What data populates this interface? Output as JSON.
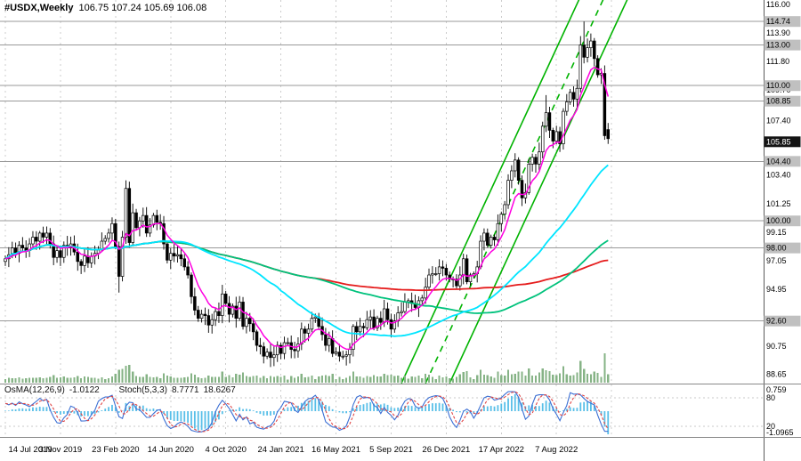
{
  "header": {
    "symbol": "#USDX,Weekly",
    "ohlc": "106.75 107.24 105.69 106.08"
  },
  "indicators": {
    "osma_label": "OsMA(12,26,9)",
    "osma_value": "-1.0122",
    "stoch_label": "Stoch(5,3,3)",
    "stoch_k": "8.7771",
    "stoch_d": "18.6267",
    "panel_axis": [
      {
        "v": "0.759",
        "kind": "osma_max"
      },
      {
        "v": "80",
        "kind": "stoch"
      },
      {
        "v": "20",
        "kind": "stoch"
      },
      {
        "v": "-1.0965",
        "kind": "osma_min"
      }
    ]
  },
  "colors": {
    "bull": "#ffffff",
    "bear": "#000000",
    "grid": "#cccccc",
    "sr_line": "#999999",
    "sr_tag": "#c0c0c0",
    "price_tag": "#141414",
    "volume": "#86b386",
    "channel": "#00b300",
    "ma_magenta": "#ff00e1",
    "ma_cyan": "#00e5ff",
    "ma_green": "#00c27c",
    "ma_red": "#e51c1c",
    "osma": "#58bfe8",
    "stoch_k": "#3b6fd4",
    "stoch_d": "#e04545"
  },
  "chart_data": {
    "type": "candlestick",
    "symbol": "#USDX",
    "timeframe": "Weekly",
    "title": "#USDX,Weekly 106.75 107.24 105.69 106.08",
    "y_range": [
      88.0,
      116.33
    ],
    "x_labels": [
      "14 Jul 2019",
      "3 Nov 2019",
      "23 Feb 2020",
      "14 Jun 2020",
      "4 Oct 2020",
      "24 Jan 2021",
      "16 May 2021",
      "5 Sep 2021",
      "26 Dec 2021",
      "17 Apr 2022",
      "7 Aug 2022"
    ],
    "label_step_weeks": 16,
    "price_axis": {
      "ticks": [
        "116.00",
        "113.90",
        "111.80",
        "109.70",
        "107.40",
        "103.40",
        "101.25",
        "99.15",
        "97.05",
        "94.95",
        "90.75",
        "88.65"
      ],
      "sr_levels": [
        "114.74",
        "113.00",
        "110.00",
        "108.85",
        "104.40",
        "100.00",
        "98.00",
        "92.60"
      ],
      "current": "105.85"
    },
    "closes": [
      97.2,
      97.5,
      98.0,
      97.6,
      98.2,
      98.0,
      97.8,
      98.3,
      98.8,
      98.5,
      99.1,
      98.8,
      99.1,
      98.3,
      97.3,
      97.8,
      97.3,
      98.2,
      98.0,
      98.3,
      97.7,
      97.0,
      96.7,
      97.4,
      96.9,
      97.4,
      97.6,
      97.9,
      98.5,
      98.7,
      99.1,
      99.8,
      98.1,
      95.9,
      98.8,
      102.4,
      98.4,
      100.6,
      99.5,
      100.0,
      100.4,
      99.1,
      99.7,
      100.4,
      99.9,
      99.8,
      98.3,
      97.1,
      97.6,
      97.4,
      97.5,
      97.2,
      96.6,
      96.0,
      94.4,
      93.4,
      92.8,
      93.1,
      93.0,
      92.3,
      92.7,
      93.3,
      93.0,
      94.6,
      93.9,
      93.1,
      93.7,
      92.8,
      94.0,
      92.2,
      92.8,
      92.4,
      91.8,
      90.8,
      90.7,
      90.0,
      90.3,
      89.9,
      90.1,
      90.8,
      90.2,
      91.0,
      91.0,
      90.5,
      90.4,
      90.9,
      92.0,
      91.7,
      92.0,
      92.8,
      92.9,
      92.2,
      91.6,
      90.8,
      91.3,
      90.2,
      90.3,
      90.0,
      90.0,
      90.1,
      90.5,
      92.2,
      91.8,
      92.2,
      92.1,
      92.7,
      92.9,
      92.1,
      92.8,
      92.5,
      93.5,
      92.7,
      92.0,
      92.6,
      93.2,
      93.3,
      94.0,
      94.1,
      93.9,
      93.6,
      94.1,
      94.3,
      95.1,
      96.0,
      96.1,
      96.1,
      96.6,
      96.5,
      96.0,
      95.7,
      95.7,
      95.2,
      96.0,
      97.2,
      95.5,
      96.0,
      96.1,
      96.6,
      98.5,
      99.1,
      98.2,
      98.8,
      98.6,
      99.8,
      100.5,
      101.2,
      103.0,
      103.7,
      104.5,
      103.0,
      101.7,
      102.1,
      104.2,
      104.7,
      104.2,
      105.1,
      107.0,
      108.0,
      106.7,
      105.9,
      106.6,
      105.7,
      108.1,
      108.8,
      109.5,
      109.0,
      109.8,
      113.0,
      112.1,
      112.8,
      113.3,
      112.0,
      110.8,
      110.9,
      106.3,
      106.08
    ],
    "candle_overrides": {
      "33": {
        "l": 94.7
      },
      "35": {
        "h": 103.0,
        "l": 98.3
      },
      "77": {
        "l": 89.2
      },
      "97": {
        "l": 89.6
      },
      "148": {
        "h": 105.0
      },
      "157": {
        "h": 109.3
      },
      "168": {
        "h": 114.74
      },
      "174": {
        "l": 106.0
      },
      "175": {
        "o": 106.75,
        "h": 107.24,
        "l": 105.69,
        "c": 106.08
      }
    },
    "ma_periods": {
      "magenta": 8,
      "cyan": 45,
      "green": 90,
      "red": 140
    },
    "channel": {
      "upper": [
        [
          115,
          88.0
        ],
        [
          167,
          116.6
        ]
      ],
      "lower": [
        [
          129,
          88.0
        ],
        [
          181,
          116.6
        ]
      ],
      "median": [
        [
          122,
          88.0
        ],
        [
          174,
          116.6
        ]
      ]
    },
    "osma_params": [
      12,
      26,
      9
    ],
    "stoch_params": [
      5,
      3,
      3
    ],
    "volume_shown": true
  }
}
